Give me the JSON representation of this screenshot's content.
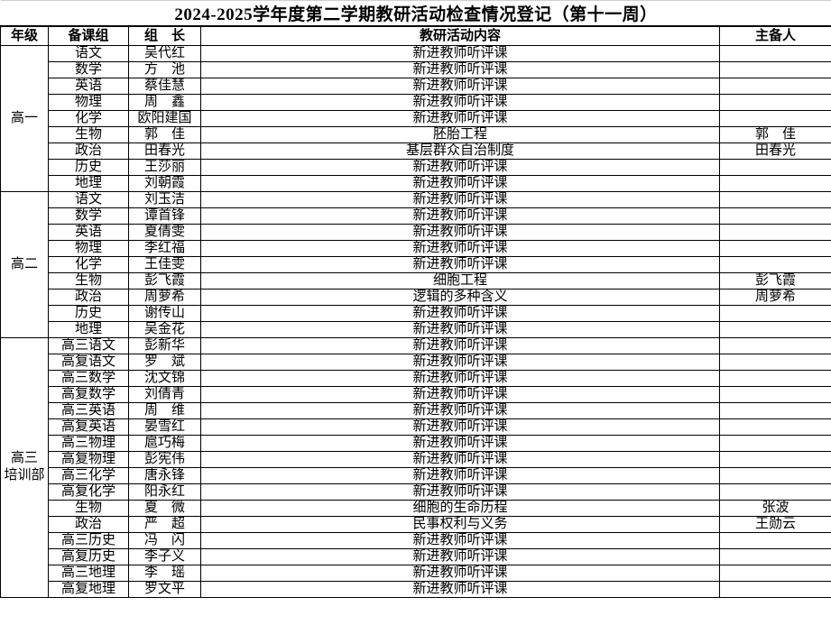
{
  "title": "2024-2025学年度第二学期教研活动检查情况登记（第十一周）",
  "table": {
    "headers": [
      "年级",
      "备课组",
      "组　长",
      "教研活动内容",
      "主备人"
    ],
    "groups": [
      {
        "grade": "高一",
        "rows": [
          {
            "subject": "语文",
            "leader": "吴代红",
            "activity": "新进教师听评课",
            "preparer": ""
          },
          {
            "subject": "数学",
            "leader": "方　池",
            "activity": "新进教师听评课",
            "preparer": ""
          },
          {
            "subject": "英语",
            "leader": "蔡佳慧",
            "activity": "新进教师听评课",
            "preparer": ""
          },
          {
            "subject": "物理",
            "leader": "周　鑫",
            "activity": "新进教师听评课",
            "preparer": ""
          },
          {
            "subject": "化学",
            "leader": "欧阳建国",
            "activity": "新进教师听评课",
            "preparer": ""
          },
          {
            "subject": "生物",
            "leader": "郭　佳",
            "activity": "胚胎工程",
            "preparer": "郭　佳"
          },
          {
            "subject": "政治",
            "leader": "田春光",
            "activity": "基层群众自治制度",
            "preparer": "田春光"
          },
          {
            "subject": "历史",
            "leader": "王莎丽",
            "activity": "新进教师听评课",
            "preparer": ""
          },
          {
            "subject": "地理",
            "leader": "刘朝霞",
            "activity": "新进教师听评课",
            "preparer": ""
          }
        ]
      },
      {
        "grade": "高二",
        "rows": [
          {
            "subject": "语文",
            "leader": "刘玉洁",
            "activity": "新进教师听评课",
            "preparer": ""
          },
          {
            "subject": "数学",
            "leader": "谭首锋",
            "activity": "新进教师听评课",
            "preparer": ""
          },
          {
            "subject": "英语",
            "leader": "夏倩雯",
            "activity": "新进教师听评课",
            "preparer": ""
          },
          {
            "subject": "物理",
            "leader": "李红福",
            "activity": "新进教师听评课",
            "preparer": ""
          },
          {
            "subject": "化学",
            "leader": "王佳雯",
            "activity": "新进教师听评课",
            "preparer": ""
          },
          {
            "subject": "生物",
            "leader": "彭飞霞",
            "activity": "细胞工程",
            "preparer": "彭飞霞"
          },
          {
            "subject": "政治",
            "leader": "周萝希",
            "activity": "逻辑的多种含义",
            "preparer": "周萝希"
          },
          {
            "subject": "历史",
            "leader": "谢传山",
            "activity": "新进教师听评课",
            "preparer": ""
          },
          {
            "subject": "地理",
            "leader": "吴金花",
            "activity": "新进教师听评课",
            "preparer": ""
          }
        ]
      },
      {
        "grade": "高三\n培训部",
        "rows": [
          {
            "subject": "高三语文",
            "leader": "彭新华",
            "activity": "新进教师听评课",
            "preparer": ""
          },
          {
            "subject": "高复语文",
            "leader": "罗　斌",
            "activity": "新进教师听评课",
            "preparer": ""
          },
          {
            "subject": "高三数学",
            "leader": "沈文锦",
            "activity": "新进教师听评课",
            "preparer": ""
          },
          {
            "subject": "高复数学",
            "leader": "刘倩青",
            "activity": "新进教师听评课",
            "preparer": ""
          },
          {
            "subject": "高三英语",
            "leader": "周　维",
            "activity": "新进教师听评课",
            "preparer": ""
          },
          {
            "subject": "高复英语",
            "leader": "晏雪红",
            "activity": "新进教师听评课",
            "preparer": ""
          },
          {
            "subject": "高三物理",
            "leader": "扈巧梅",
            "activity": "新进教师听评课",
            "preparer": ""
          },
          {
            "subject": "高复物理",
            "leader": "彭宪伟",
            "activity": "新进教师听评课",
            "preparer": ""
          },
          {
            "subject": "高三化学",
            "leader": "唐永锋",
            "activity": "新进教师听评课",
            "preparer": ""
          },
          {
            "subject": "高复化学",
            "leader": "阳永红",
            "activity": "新进教师听评课",
            "preparer": ""
          },
          {
            "subject": "生物",
            "leader": "夏　微",
            "activity": "细胞的生命历程",
            "preparer": "张波"
          },
          {
            "subject": "政治",
            "leader": "严　超",
            "activity": "民事权利与义务",
            "preparer": "王勋云"
          },
          {
            "subject": "高三历史",
            "leader": "冯　闪",
            "activity": "新进教师听评课",
            "preparer": ""
          },
          {
            "subject": "高复历史",
            "leader": "李子义",
            "activity": "新进教师听评课",
            "preparer": ""
          },
          {
            "subject": "高三地理",
            "leader": "李　瑶",
            "activity": "新进教师听评课",
            "preparer": ""
          },
          {
            "subject": "高复地理",
            "leader": "罗文平",
            "activity": "新进教师听评课",
            "preparer": ""
          }
        ]
      }
    ]
  }
}
